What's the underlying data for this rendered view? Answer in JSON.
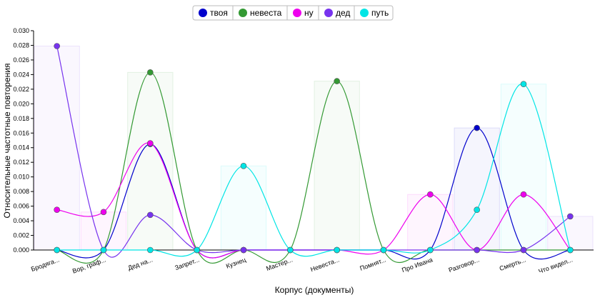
{
  "chart_data": {
    "type": "line",
    "xlabel": "Корпус (документы)",
    "ylabel": "Относительные частотные повторения",
    "ylim": [
      0,
      0.03
    ],
    "yticks": [
      "0.000",
      "0.002",
      "0.004",
      "0.006",
      "0.008",
      "0.010",
      "0.012",
      "0.014",
      "0.016",
      "0.018",
      "0.020",
      "0.022",
      "0.024",
      "0.026",
      "0.028",
      "0.030"
    ],
    "categories": [
      "Бродяга...",
      "Вор, граф...",
      "Дед на...",
      "Запрет...",
      "Кузнец",
      "Мастер...",
      "Невеста...",
      "Помнят...",
      "Про Ивана",
      "Разговор...",
      "Смерть...",
      "Что видел..."
    ],
    "legend_position": "top-center",
    "series": [
      {
        "name": "твоя",
        "color": "#0000cc",
        "values": [
          0,
          0,
          0.0145,
          0,
          0,
          0,
          0,
          0,
          0,
          0.0167,
          0,
          0
        ]
      },
      {
        "name": "невеста",
        "color": "#339933",
        "values": [
          0,
          0,
          0.0243,
          0,
          0,
          0,
          0.0231,
          0,
          0,
          0,
          0,
          0
        ]
      },
      {
        "name": "ну",
        "color": "#ee00ee",
        "values": [
          0.0055,
          0.0052,
          0.0146,
          0,
          0,
          0,
          0,
          0,
          0.0076,
          0,
          0.0076,
          0
        ]
      },
      {
        "name": "дед",
        "color": "#7733ee",
        "values": [
          0.0279,
          0,
          0.0048,
          0,
          0,
          0,
          0,
          0,
          0,
          0,
          0,
          0.0046
        ]
      },
      {
        "name": "путь",
        "color": "#00e5e5",
        "values": [
          0,
          0,
          0,
          0,
          0.0115,
          0,
          0,
          0,
          0,
          0.0055,
          0.0227,
          0
        ]
      }
    ]
  }
}
